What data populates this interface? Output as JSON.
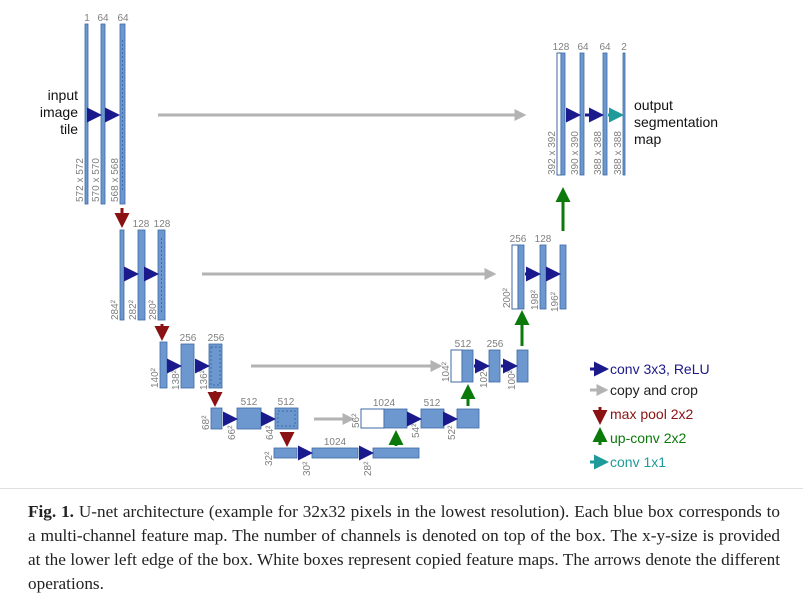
{
  "labels": {
    "input": [
      "input",
      "image",
      "tile"
    ],
    "output": [
      "output",
      "segmentation",
      "map"
    ]
  },
  "channels": {
    "c1": "1",
    "c64a": "64",
    "c64b": "64",
    "c128a": "128",
    "c128b": "128",
    "c256a": "256",
    "c256b": "256",
    "c512a": "512",
    "c512b": "512",
    "c1024a": "1024",
    "c1024up": "1024",
    "c512u1": "512",
    "c512u2": "512",
    "c256u1": "256",
    "c256u2": "256",
    "c128u1": "128",
    "c128u2": "128",
    "c64u1": "64",
    "c64u2": "64",
    "c2": "2"
  },
  "sizes": {
    "s572": "572 x 572",
    "s570": "570 x 570",
    "s568": "568 x 568",
    "s284": "284²",
    "s282": "282²",
    "s280": "280²",
    "s140": "140²",
    "s138": "138²",
    "s136": "136²",
    "s68": "68²",
    "s66": "66²",
    "s64": "64²",
    "s32": "32²",
    "s30": "30²",
    "s28": "28²",
    "s56": "56²",
    "s54": "54²",
    "s52": "52²",
    "s104": "104²",
    "s102": "102²",
    "s100": "100²",
    "s200": "200²",
    "s198": "198²",
    "s196": "196²",
    "s392": "392 x 392",
    "s390": "390 x 390",
    "s388a": "388 x 388",
    "s388b": "388 x 388"
  },
  "legend": {
    "conv": "conv 3x3, ReLU",
    "copy": "copy and crop",
    "pool": "max pool 2x2",
    "upconv": "up-conv 2x2",
    "conv1": "conv 1x1"
  },
  "colors": {
    "box": "#6d98cf",
    "box_border": "#3c6aa6",
    "conv_arrow": "#1a1a8c",
    "copy_arrow": "#b3b3b3",
    "pool_arrow": "#8b1212",
    "upconv_arrow": "#0b7a0b",
    "conv1_arrow": "#1f9a9a"
  },
  "caption": {
    "bold": "Fig. 1.",
    "text": " U-net architecture (example for 32x32 pixels in the lowest resolution). Each blue box corresponds to a multi-channel feature map. The number of channels is denoted on top of the box. The x-y-size is provided at the lower left edge of the box. White boxes represent copied feature maps. The arrows denote the different operations."
  }
}
